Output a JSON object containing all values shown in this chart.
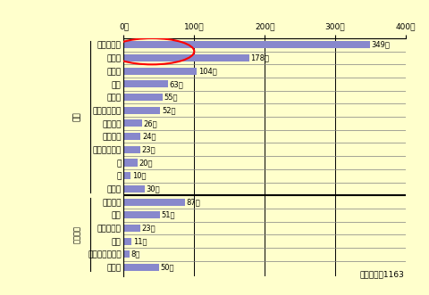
{
  "categories": [
    "小麦粉製品",
    "乳製品",
    "調味料",
    "青果",
    "嗜好品",
    "肉、肉加工品",
    "大豆製品",
    "食品全般",
    "魚、魚加工品",
    "卵",
    "米",
    "その他",
    "ガソリン",
    "紙類",
    "水道光熱費",
    "家電",
    "衣類・身髝雑貨",
    "その他"
  ],
  "values": [
    349,
    178,
    104,
    63,
    55,
    52,
    26,
    24,
    23,
    20,
    10,
    30,
    87,
    51,
    23,
    11,
    8,
    50
  ],
  "bar_color": "#8888cc",
  "background_color": "#ffffcc",
  "plot_bg_color": "#ffffcc",
  "food_label": "食品",
  "non_food_label": "食品以外",
  "food_count": 12,
  "non_food_count": 6,
  "total_note": "総回答数＝1163",
  "xlim": [
    0,
    400
  ],
  "xtick_values": [
    0,
    100,
    200,
    300,
    400
  ],
  "font_size": 6.5,
  "label_font_size": 6.5
}
